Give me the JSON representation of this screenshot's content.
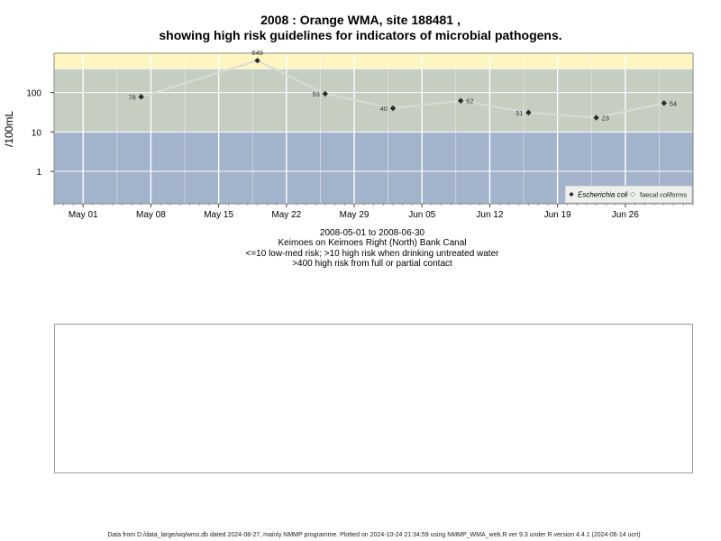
{
  "title": {
    "line1": "2008 : Orange WMA, site 188481 ,",
    "line2": "showing high risk guidelines for indicators of microbial pathogens."
  },
  "subtitle": {
    "date_range": "2008-05-01 to 2008-06-30",
    "location": "Keimoes on Keimoes Right (North) Bank Canal",
    "guideline_1": "<=10 low-med risk; >10 high risk when drinking untreated water",
    "guideline_2": ">400 high risk from full or partial contact"
  },
  "footer": "Data from D:/data_large/wq/wms.db dated 2024-08-27, mainly NMMP programme. Plotted on 2024-10-24 21:34:59 using NMMP_WMA_web.R ver 9.3 under R version 4.4.1 (2024-06-14 ucrt)",
  "chart_data": {
    "type": "line",
    "ylabel": "/100mL",
    "y_scale": "log",
    "y_ticks": [
      {
        "value": 1,
        "label": "1"
      },
      {
        "value": 10,
        "label": "10"
      },
      {
        "value": 100,
        "label": "100"
      }
    ],
    "x_ticks": [
      {
        "date": "2008-05-01",
        "label": "May 01"
      },
      {
        "date": "2008-05-08",
        "label": "May 08"
      },
      {
        "date": "2008-05-15",
        "label": "May 15"
      },
      {
        "date": "2008-05-22",
        "label": "May 22"
      },
      {
        "date": "2008-05-29",
        "label": "May 29"
      },
      {
        "date": "2008-06-05",
        "label": "Jun 05"
      },
      {
        "date": "2008-06-12",
        "label": "Jun 12"
      },
      {
        "date": "2008-06-19",
        "label": "Jun 19"
      },
      {
        "date": "2008-06-26",
        "label": "Jun 26"
      }
    ],
    "series": [
      {
        "name": "Escherichia coli",
        "points": [
          {
            "date": "2008-05-07",
            "value": 78,
            "label": "78"
          },
          {
            "date": "2008-05-19",
            "value": 649,
            "label": "649"
          },
          {
            "date": "2008-05-26",
            "value": 93,
            "label": "93"
          },
          {
            "date": "2008-06-02",
            "value": 40,
            "label": "40"
          },
          {
            "date": "2008-06-09",
            "value": 62,
            "label": "62"
          },
          {
            "date": "2008-06-16",
            "value": 31,
            "label": "31"
          },
          {
            "date": "2008-06-23",
            "value": 23,
            "label": "23"
          },
          {
            "date": "2008-06-30",
            "value": 54,
            "label": "54"
          }
        ]
      },
      {
        "name": "faecal coliforms",
        "points": []
      }
    ],
    "bands": [
      {
        "from": 0,
        "to": 10,
        "color": "#a2b3cb"
      },
      {
        "from": 10,
        "to": 400,
        "color": "#c5cec0"
      },
      {
        "from": 400,
        "to": 1000,
        "color": "#fdf6c0"
      }
    ],
    "colors": {
      "line": "#d9dcd5",
      "point": "#2a2a2a",
      "grid": "#ffffff"
    },
    "legend_position": "bottom-right",
    "grid": true
  }
}
